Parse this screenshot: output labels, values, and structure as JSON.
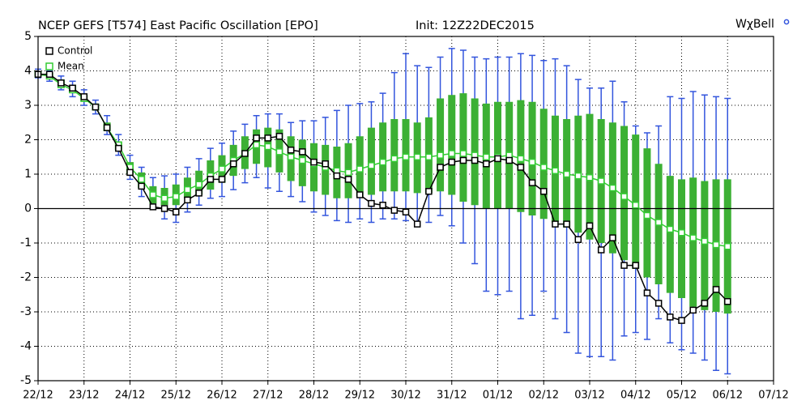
{
  "chart_data": {
    "type": "box",
    "title": "NCEP GEFS [T574] East Pacific Oscillation [EPO]",
    "subtitle": "Init: 12Z22DEC2015",
    "brand": "WχBell",
    "categories": [
      "22/12",
      null,
      null,
      null,
      "23/12",
      null,
      null,
      null,
      "24/12",
      null,
      null,
      null,
      "25/12",
      null,
      null,
      null,
      "26/12",
      null,
      null,
      null,
      "27/12",
      null,
      null,
      null,
      "28/12",
      null,
      null,
      null,
      "29/12",
      null,
      null,
      null,
      "30/12",
      null,
      null,
      null,
      "31/12",
      null,
      null,
      null,
      "01/12",
      null,
      null,
      null,
      "02/12",
      null,
      null,
      null,
      "03/12",
      null,
      null,
      null,
      "04/12",
      null,
      null,
      null,
      "05/12",
      null,
      null,
      null,
      "06/12",
      null,
      null,
      null,
      "07/12"
    ],
    "series": [
      {
        "name": "Control",
        "color": "#000000",
        "values": [
          3.9,
          3.9,
          3.65,
          3.5,
          3.25,
          2.95,
          2.35,
          1.75,
          1.05,
          0.65,
          0.05,
          0.0,
          -0.1,
          0.25,
          0.45,
          0.85,
          0.85,
          1.3,
          1.6,
          2.05,
          2.05,
          2.1,
          1.7,
          1.65,
          1.35,
          1.3,
          0.95,
          0.85,
          0.4,
          0.15,
          0.1,
          -0.05,
          -0.1,
          -0.45,
          0.5,
          1.2,
          1.35,
          1.4,
          1.4,
          1.3,
          1.45,
          1.4,
          1.2,
          0.75,
          0.5,
          -0.45,
          -0.45,
          -0.9,
          -0.5,
          -1.2,
          -0.85,
          -1.65,
          -1.65,
          -2.45,
          -2.75,
          -3.15,
          -3.25,
          -2.95,
          -2.75,
          -2.35,
          -2.7
        ]
      },
      {
        "name": "Mean",
        "color": "#33cc33",
        "values": [
          3.9,
          3.85,
          3.6,
          3.45,
          3.2,
          2.95,
          2.35,
          1.85,
          1.2,
          0.85,
          0.4,
          0.3,
          0.35,
          0.55,
          0.7,
          0.95,
          1.15,
          1.4,
          1.6,
          1.85,
          1.8,
          1.65,
          1.5,
          1.4,
          1.3,
          1.2,
          1.1,
          1.05,
          1.15,
          1.25,
          1.35,
          1.45,
          1.5,
          1.5,
          1.5,
          1.55,
          1.6,
          1.6,
          1.55,
          1.5,
          1.5,
          1.55,
          1.45,
          1.35,
          1.2,
          1.1,
          1.0,
          0.95,
          0.9,
          0.8,
          0.6,
          0.35,
          0.1,
          -0.2,
          -0.4,
          -0.6,
          -0.7,
          -0.85,
          -0.95,
          -1.05,
          -1.1
        ]
      }
    ],
    "spread": {
      "box_color": "#3cb034",
      "whisker_color": "#3355dd",
      "q1": [
        3.85,
        3.75,
        3.5,
        3.35,
        3.1,
        2.85,
        2.25,
        1.7,
        1.0,
        0.6,
        0.15,
        0.1,
        0.1,
        0.3,
        0.4,
        0.55,
        0.75,
        0.95,
        1.15,
        1.3,
        1.2,
        1.05,
        0.8,
        0.65,
        0.5,
        0.4,
        0.3,
        0.3,
        0.35,
        0.4,
        0.5,
        0.5,
        0.5,
        0.45,
        0.45,
        0.5,
        0.4,
        0.2,
        0.1,
        0.0,
        0.0,
        0.0,
        -0.1,
        -0.2,
        -0.3,
        -0.4,
        -0.55,
        -0.7,
        -0.9,
        -1.0,
        -1.3,
        -1.5,
        -1.75,
        -2.0,
        -2.2,
        -2.45,
        -2.6,
        -2.85,
        -2.95,
        -3.0,
        -3.05
      ],
      "q3": [
        4.0,
        3.95,
        3.75,
        3.6,
        3.3,
        3.05,
        2.5,
        1.95,
        1.35,
        1.05,
        0.65,
        0.6,
        0.7,
        0.9,
        1.1,
        1.4,
        1.55,
        1.85,
        2.1,
        2.3,
        2.35,
        2.3,
        2.1,
        2.0,
        1.9,
        1.85,
        1.8,
        1.9,
        2.1,
        2.35,
        2.5,
        2.6,
        2.6,
        2.5,
        2.65,
        3.2,
        3.3,
        3.35,
        3.2,
        3.05,
        3.1,
        3.1,
        3.15,
        3.1,
        2.9,
        2.7,
        2.6,
        2.7,
        2.75,
        2.6,
        2.5,
        2.4,
        2.15,
        1.75,
        1.3,
        0.95,
        0.85,
        0.9,
        0.8,
        0.85,
        0.85
      ],
      "low": [
        3.8,
        3.7,
        3.45,
        3.25,
        3.0,
        2.75,
        2.15,
        1.55,
        0.85,
        0.35,
        0.0,
        -0.3,
        -0.4,
        -0.1,
        0.1,
        0.3,
        0.35,
        0.55,
        0.75,
        0.9,
        0.6,
        0.5,
        0.35,
        0.2,
        -0.1,
        -0.2,
        -0.35,
        -0.4,
        -0.3,
        -0.4,
        -0.3,
        -0.3,
        -0.35,
        -0.5,
        -0.4,
        -0.2,
        -0.5,
        -1.0,
        -1.6,
        -2.4,
        -2.5,
        -2.4,
        -3.2,
        -3.1,
        -2.4,
        -3.2,
        -3.6,
        -4.2,
        -4.3,
        -4.3,
        -4.4,
        -3.7,
        -3.6,
        -3.8,
        -3.2,
        -3.9,
        -4.1,
        -4.2,
        -4.4,
        -4.7,
        -4.8
      ],
      "high": [
        4.05,
        4.0,
        3.85,
        3.7,
        3.45,
        3.15,
        2.7,
        2.15,
        1.55,
        1.2,
        0.9,
        0.95,
        1.0,
        1.2,
        1.45,
        1.75,
        1.9,
        2.25,
        2.45,
        2.7,
        2.75,
        2.75,
        2.5,
        2.55,
        2.55,
        2.65,
        2.85,
        3.0,
        3.05,
        3.1,
        3.35,
        3.95,
        4.5,
        4.15,
        4.1,
        4.4,
        4.65,
        4.6,
        4.4,
        4.35,
        4.4,
        4.4,
        4.5,
        4.45,
        4.3,
        4.35,
        4.15,
        3.75,
        3.5,
        3.5,
        3.7,
        3.1,
        2.4,
        2.2,
        2.4,
        3.25,
        3.2,
        3.4,
        3.3,
        3.25,
        3.2
      ]
    },
    "ylim": [
      -5,
      5
    ],
    "yticks": [
      -5,
      -4,
      -3,
      -2,
      -1,
      0,
      1,
      2,
      3,
      4,
      5
    ],
    "grid": true,
    "legend": "upper left"
  }
}
